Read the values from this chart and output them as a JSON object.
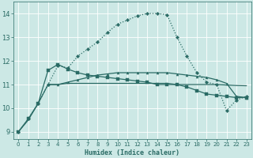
{
  "xlabel": "Humidex (Indice chaleur)",
  "xlim": [
    -0.5,
    23.5
  ],
  "ylim": [
    8.7,
    14.5
  ],
  "yticks": [
    9,
    10,
    11,
    12,
    13,
    14
  ],
  "xticks": [
    0,
    1,
    2,
    3,
    4,
    5,
    6,
    7,
    8,
    9,
    10,
    11,
    12,
    13,
    14,
    15,
    16,
    17,
    18,
    19,
    20,
    21,
    22,
    23
  ],
  "bg_color": "#cce8e5",
  "grid_color": "#ffffff",
  "line_color": "#2a6b65",
  "curve1_x": [
    0,
    1,
    2,
    3,
    4,
    5,
    6,
    7,
    8,
    9,
    10,
    11,
    12,
    13,
    14,
    15,
    16,
    17,
    18,
    19,
    20,
    21,
    22,
    23
  ],
  "curve1_y": [
    9.0,
    9.55,
    10.2,
    11.6,
    11.85,
    11.65,
    11.5,
    11.4,
    11.35,
    11.3,
    11.25,
    11.2,
    11.15,
    11.1,
    11.0,
    11.0,
    11.0,
    10.9,
    10.75,
    10.6,
    10.55,
    10.5,
    10.45,
    10.45
  ],
  "curve2_x": [
    3,
    4,
    5,
    6,
    7,
    8,
    9,
    10,
    11,
    12,
    13,
    14,
    15,
    16,
    17,
    18,
    19,
    20,
    21,
    22,
    23
  ],
  "curve2_y": [
    11.0,
    11.0,
    11.1,
    11.2,
    11.3,
    11.4,
    11.45,
    11.5,
    11.5,
    11.5,
    11.5,
    11.5,
    11.5,
    11.45,
    11.4,
    11.35,
    11.3,
    11.2,
    11.05,
    10.5,
    10.45
  ],
  "curve3_x": [
    0,
    1,
    2,
    3,
    4,
    5,
    6,
    7,
    8,
    9,
    10,
    11,
    12,
    13,
    14,
    15,
    16,
    17,
    18,
    19,
    20,
    21,
    22,
    23
  ],
  "curve3_y": [
    9.0,
    9.5,
    10.2,
    11.0,
    11.0,
    11.05,
    11.05,
    11.05,
    11.05,
    11.05,
    11.05,
    11.05,
    11.05,
    11.05,
    11.05,
    11.05,
    11.0,
    11.0,
    11.0,
    11.0,
    11.0,
    10.98,
    10.96,
    10.95
  ],
  "curve4_x": [
    0,
    1,
    2,
    3,
    4,
    5,
    6,
    7,
    8,
    9,
    10,
    11,
    12,
    13,
    14,
    15,
    16,
    17,
    18,
    19,
    20,
    21,
    22,
    23
  ],
  "curve4_y": [
    9.0,
    9.55,
    10.2,
    11.0,
    11.8,
    11.7,
    12.2,
    12.5,
    12.8,
    13.2,
    13.55,
    13.72,
    13.9,
    14.0,
    14.0,
    13.95,
    13.0,
    12.2,
    11.5,
    11.1,
    11.0,
    9.9,
    10.35,
    10.5
  ]
}
